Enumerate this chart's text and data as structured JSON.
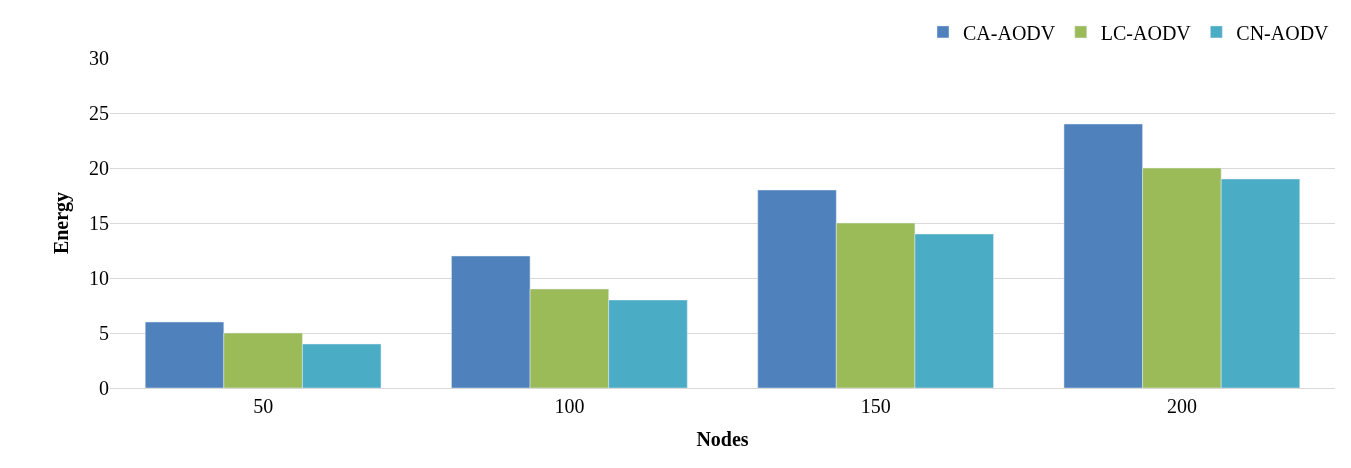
{
  "chart_data": {
    "type": "bar",
    "xlabel": "Nodes",
    "ylabel": "Energy",
    "categories": [
      "50",
      "100",
      "150",
      "200"
    ],
    "series": [
      {
        "name": "CA-AODV",
        "color": "#4f81bd",
        "values": [
          6,
          12,
          18,
          24
        ]
      },
      {
        "name": "LC-AODV",
        "color": "#9bbb59",
        "values": [
          5,
          9,
          15,
          20
        ]
      },
      {
        "name": "CN-AODV",
        "color": "#4bacc6",
        "values": [
          4,
          8,
          14,
          19
        ]
      }
    ],
    "ylim": [
      0,
      30
    ],
    "yticks": [
      0,
      5,
      10,
      15,
      20,
      25,
      30
    ],
    "grid": "y",
    "legend": "top right"
  }
}
